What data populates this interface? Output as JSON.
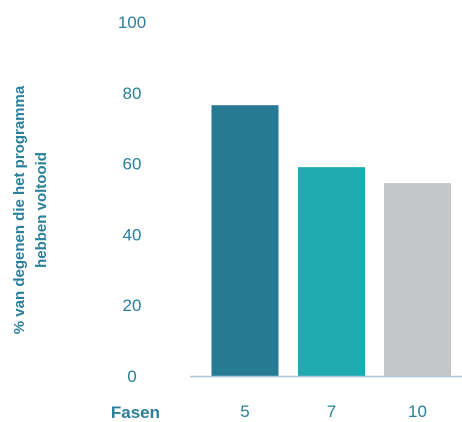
{
  "chart_data": {
    "type": "bar",
    "categories": [
      "5",
      "7",
      "10"
    ],
    "values": [
      76.5,
      59,
      54.5
    ],
    "bar_colors": [
      "#277a94",
      "#1fa9b1",
      "#c5c6c8"
    ],
    "ylabel_lines": [
      "% van degenen die het programma",
      "hebben voltooid"
    ],
    "xlabel": "Fasen",
    "ylim": [
      0,
      100
    ],
    "yticks": [
      0,
      20,
      40,
      60,
      80,
      100
    ],
    "grid": false,
    "legend": "none"
  },
  "colors": {
    "text": "#2a7f9b",
    "axis_line": "#a9c7da"
  }
}
